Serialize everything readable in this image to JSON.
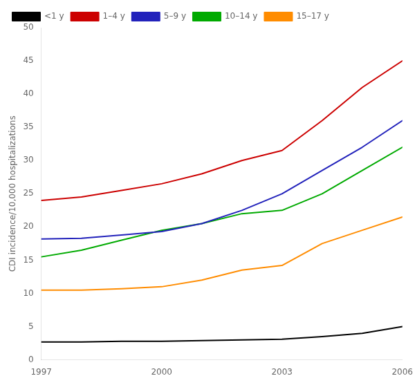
{
  "chart_data": {
    "type": "line",
    "x": [
      1997,
      1998,
      1999,
      2000,
      2001,
      2002,
      2003,
      2004,
      2005,
      2006
    ],
    "series": [
      {
        "name": "<1 y",
        "color": "#000000",
        "values": [
          2.7,
          2.7,
          2.8,
          2.8,
          2.9,
          3.0,
          3.1,
          3.5,
          4.0,
          5.0
        ]
      },
      {
        "name": "1–4 y",
        "color": "#cc0000",
        "values": [
          24.0,
          24.5,
          25.5,
          26.5,
          28.0,
          30.0,
          31.5,
          36.0,
          41.0,
          45.0
        ]
      },
      {
        "name": "5–9 y",
        "color": "#2222bb",
        "values": [
          18.2,
          18.3,
          18.8,
          19.3,
          20.5,
          22.5,
          25.0,
          28.5,
          32.0,
          36.0
        ]
      },
      {
        "name": "10–14 y",
        "color": "#00aa00",
        "values": [
          15.5,
          16.5,
          18.0,
          19.5,
          20.5,
          22.0,
          22.5,
          25.0,
          28.5,
          32.0
        ]
      },
      {
        "name": "15–17 y",
        "color": "#ff8c00",
        "values": [
          10.5,
          10.5,
          10.7,
          11.0,
          12.0,
          13.5,
          14.2,
          17.5,
          19.5,
          21.5
        ]
      }
    ],
    "ylabel": "CDI incidence/10,000 hospitalizations",
    "xlim": [
      1997,
      2006
    ],
    "xticks": [
      1997,
      2000,
      2003,
      2006
    ],
    "ylim": [
      0,
      50
    ],
    "yticks": [
      0,
      5,
      10,
      15,
      20,
      25,
      30,
      35,
      40,
      45,
      50
    ],
    "legend": "upper left",
    "grid": false
  }
}
